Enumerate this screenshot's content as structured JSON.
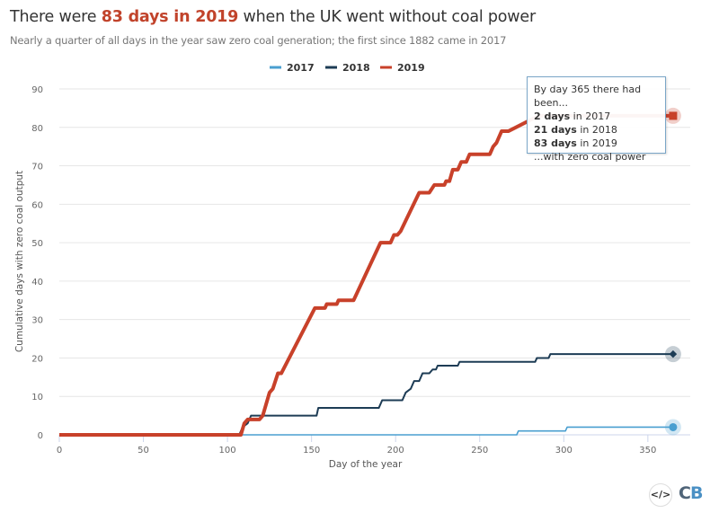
{
  "title": {
    "pre": "There were ",
    "highlight": "83 days in 2019",
    "post": " when the UK went without coal power"
  },
  "subtitle": "Nearly a quarter of all days in the year saw zero coal generation; the first since 1882 came in 2017",
  "tooltip": {
    "line1": "By day 365 there had been...",
    "l2b": "2 days",
    "l2": " in 2017",
    "l3b": "21 days",
    "l3": " in 2018",
    "l4b": "83 days",
    "l4": " in 2019",
    "line5": "...with zero coal power"
  },
  "logo": "CB",
  "embed_icon": "code-embed-icon",
  "chart_data": {
    "type": "line",
    "xlabel": "Day of the year",
    "ylabel": "Cumulative days with zero coal output",
    "xlim": [
      0,
      365
    ],
    "ylim": [
      0,
      90
    ],
    "xticks": [
      0,
      50,
      100,
      150,
      200,
      250,
      300,
      350
    ],
    "yticks": [
      0,
      10,
      20,
      30,
      40,
      50,
      60,
      70,
      80,
      90
    ],
    "grid": "horizontal",
    "legend": "top-center",
    "series": [
      {
        "name": "2017",
        "color": "#4a9fd0",
        "points": [
          [
            0,
            0
          ],
          [
            272,
            0
          ],
          [
            273,
            1
          ],
          [
            301,
            1
          ],
          [
            302,
            2
          ],
          [
            365,
            2
          ]
        ]
      },
      {
        "name": "2018",
        "color": "#1d3c55",
        "points": [
          [
            0,
            0
          ],
          [
            107,
            0
          ],
          [
            109,
            2
          ],
          [
            112,
            3
          ],
          [
            114,
            5
          ],
          [
            153,
            5
          ],
          [
            154,
            7
          ],
          [
            190,
            7
          ],
          [
            192,
            9
          ],
          [
            204,
            9
          ],
          [
            206,
            11
          ],
          [
            209,
            12
          ],
          [
            211,
            14
          ],
          [
            214,
            14
          ],
          [
            216,
            16
          ],
          [
            220,
            16
          ],
          [
            222,
            17
          ],
          [
            224,
            17
          ],
          [
            225,
            18
          ],
          [
            237,
            18
          ],
          [
            238,
            19
          ],
          [
            283,
            19
          ],
          [
            284,
            20
          ],
          [
            291,
            20
          ],
          [
            292,
            21
          ],
          [
            365,
            21
          ]
        ]
      },
      {
        "name": "2019",
        "color": "#c8412a",
        "points": [
          [
            0,
            0
          ],
          [
            108,
            0
          ],
          [
            110,
            3
          ],
          [
            112,
            4
          ],
          [
            119,
            4
          ],
          [
            121,
            5
          ],
          [
            125,
            11
          ],
          [
            127,
            12
          ],
          [
            130,
            16
          ],
          [
            132,
            16
          ],
          [
            152,
            33
          ],
          [
            158,
            33
          ],
          [
            159,
            34
          ],
          [
            165,
            34
          ],
          [
            166,
            35
          ],
          [
            175,
            35
          ],
          [
            191,
            50
          ],
          [
            197,
            50
          ],
          [
            199,
            52
          ],
          [
            201,
            52
          ],
          [
            203,
            53
          ],
          [
            214,
            63
          ],
          [
            220,
            63
          ],
          [
            223,
            65
          ],
          [
            229,
            65
          ],
          [
            230,
            66
          ],
          [
            232,
            66
          ],
          [
            234,
            69
          ],
          [
            237,
            69
          ],
          [
            239,
            71
          ],
          [
            242,
            71
          ],
          [
            244,
            73
          ],
          [
            256,
            73
          ],
          [
            258,
            75
          ],
          [
            260,
            76
          ],
          [
            263,
            79
          ],
          [
            267,
            79
          ],
          [
            285,
            83
          ],
          [
            365,
            83
          ]
        ]
      }
    ]
  }
}
